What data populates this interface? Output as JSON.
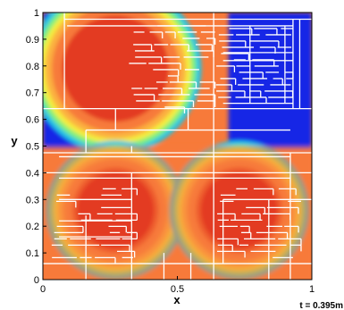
{
  "chart_data": {
    "type": "heatmap",
    "title": "",
    "xlabel": "x",
    "ylabel": "y",
    "xlim": [
      0,
      1
    ],
    "ylim": [
      0,
      1
    ],
    "x_ticks": [
      {
        "value": 0,
        "label": "0"
      },
      {
        "value": 0.5,
        "label": "0.5"
      },
      {
        "value": 1,
        "label": "1"
      }
    ],
    "y_ticks": [
      {
        "value": 0,
        "label": "0"
      },
      {
        "value": 0.1,
        "label": "0.1"
      },
      {
        "value": 0.2,
        "label": "0.2"
      },
      {
        "value": 0.3,
        "label": "0.3"
      },
      {
        "value": 0.4,
        "label": "0.4"
      },
      {
        "value": 0.5,
        "label": "0.5"
      },
      {
        "value": 0.6,
        "label": "0.6"
      },
      {
        "value": 0.7,
        "label": "0.7"
      },
      {
        "value": 0.8,
        "label": "0.8"
      },
      {
        "value": 0.9,
        "label": "0.9"
      },
      {
        "value": 1,
        "label": "1"
      }
    ],
    "annotation": "t = 0.395m",
    "colormap": [
      "#1426e6",
      "#22c4e4",
      "#7ff07c",
      "#f5ee3c",
      "#fbb03f",
      "#f77a3a",
      "#e33a23"
    ],
    "background_level": "#f77a3a",
    "grid": false,
    "legend": "none",
    "blobs": [
      {
        "cx": 0.27,
        "cy": 0.79,
        "r": 0.32
      },
      {
        "cx": 0.27,
        "cy": 0.26,
        "r": 0.26
      },
      {
        "cx": 0.73,
        "cy": 0.26,
        "r": 0.26
      }
    ],
    "blue_regions": [
      {
        "x": [
          0.0,
          0.31
        ],
        "y": [
          0.49,
          1.0
        ]
      },
      {
        "x": [
          0.69,
          1.0
        ],
        "y": [
          0.49,
          1.0
        ]
      }
    ],
    "mesh_lines": [
      [
        0.0,
        0.64,
        1.0,
        0.64
      ],
      [
        0.0,
        0.475,
        1.0,
        0.475
      ],
      [
        0.635,
        0.0,
        0.635,
        1.0
      ],
      [
        0.08,
        0.975,
        1.0,
        0.975
      ],
      [
        0.08,
        0.64,
        0.08,
        1.0
      ],
      [
        0.09,
        0.95,
        0.93,
        0.95
      ],
      [
        0.93,
        0.64,
        0.93,
        0.975
      ],
      [
        0.955,
        0.64,
        0.955,
        0.975
      ],
      [
        0.67,
        0.85,
        0.93,
        0.85
      ],
      [
        0.67,
        0.82,
        0.93,
        0.82
      ],
      [
        0.67,
        0.66,
        0.93,
        0.66
      ],
      [
        0.77,
        0.66,
        0.77,
        0.95
      ],
      [
        0.9,
        0.66,
        0.9,
        0.95
      ],
      [
        0.33,
        0.5,
        0.33,
        0.475
      ],
      [
        0.16,
        0.475,
        0.16,
        0.56
      ],
      [
        0.16,
        0.56,
        0.92,
        0.56
      ],
      [
        0.27,
        0.56,
        0.27,
        0.64
      ],
      [
        0.54,
        0.56,
        0.54,
        0.64
      ],
      [
        0.0,
        0.4,
        1.0,
        0.4
      ],
      [
        0.0,
        0.06,
        1.0,
        0.06
      ],
      [
        0.16,
        0.0,
        0.16,
        0.24
      ],
      [
        0.33,
        0.0,
        0.33,
        0.4
      ],
      [
        0.45,
        0.0,
        0.45,
        0.1
      ],
      [
        0.55,
        0.0,
        0.55,
        0.1
      ],
      [
        0.67,
        0.06,
        0.67,
        0.3
      ],
      [
        0.67,
        0.3,
        1.0,
        0.3
      ],
      [
        0.84,
        0.0,
        0.84,
        0.3
      ],
      [
        0.92,
        0.0,
        0.92,
        0.475
      ],
      [
        0.06,
        0.22,
        0.33,
        0.22
      ],
      [
        0.06,
        0.16,
        0.33,
        0.16
      ],
      [
        0.06,
        0.38,
        0.92,
        0.38
      ],
      [
        0.06,
        0.46,
        0.92,
        0.46
      ],
      [
        0.06,
        0.3,
        0.33,
        0.3
      ]
    ],
    "mesh_detail_regions": [
      {
        "x": [
          0.32,
          0.64
        ],
        "y": [
          0.62,
          0.96
        ]
      },
      {
        "x": [
          0.03,
          0.35
        ],
        "y": [
          0.05,
          0.35
        ]
      },
      {
        "x": [
          0.64,
          0.96
        ],
        "y": [
          0.05,
          0.35
        ]
      },
      {
        "x": [
          0.64,
          0.93
        ],
        "y": [
          0.66,
          0.95
        ]
      }
    ]
  }
}
